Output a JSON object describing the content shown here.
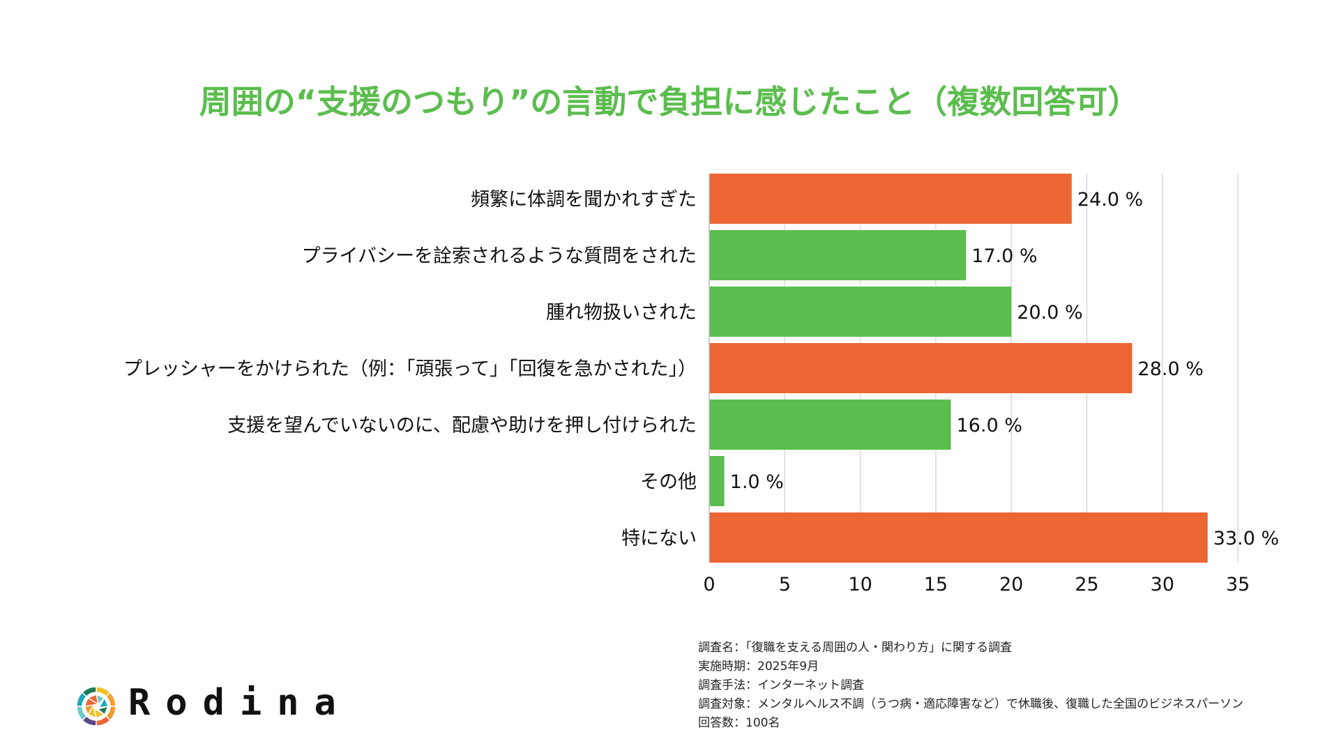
{
  "chart_data": {
    "type": "bar",
    "orientation": "horizontal",
    "title": "周囲の“支援のつもり”の言動で負担に感じたこと（複数回答可）",
    "categories": [
      "頻繁に体調を聞かれすぎた",
      "プライバシーを詮索されるような質問をされた",
      "腫れ物扱いされた",
      "プレッシャーをかけられた（例：「頑張って」「回復を急かされた」）",
      "支援を望んでいないのに、配慮や助けを押し付けられた",
      "その他",
      "特にない"
    ],
    "values": [
      24.0,
      17.0,
      20.0,
      28.0,
      16.0,
      1.0,
      33.0
    ],
    "data_labels": [
      "24.0 %",
      "17.0 %",
      "20.0 %",
      "28.0 %",
      "16.0 %",
      "1.0 %",
      "33.0 %"
    ],
    "highlight": [
      true,
      false,
      false,
      true,
      false,
      false,
      true
    ],
    "xlim": [
      0,
      35
    ],
    "xticks": [
      "0",
      "5",
      "10",
      "15",
      "20",
      "25",
      "30",
      "35"
    ],
    "grid": true,
    "xlabel": "",
    "ylabel": ""
  },
  "colors": {
    "title": "#5bbd4e",
    "highlight": "#ec6634",
    "normal": "#5bbd4e",
    "grid": "#d9d9d9"
  },
  "notes": [
    "調査名：「復職を支える周囲の人・関わり方」に関する調査",
    "実施時期：2025年9月",
    "調査手法：インターネット調査",
    "調査対象：メンタルヘルス不調（うつ病・適応障害など）で休職後、復職した全国のビジネスパーソン",
    "回答数：100名"
  ],
  "brand": {
    "name": "Rodina"
  }
}
